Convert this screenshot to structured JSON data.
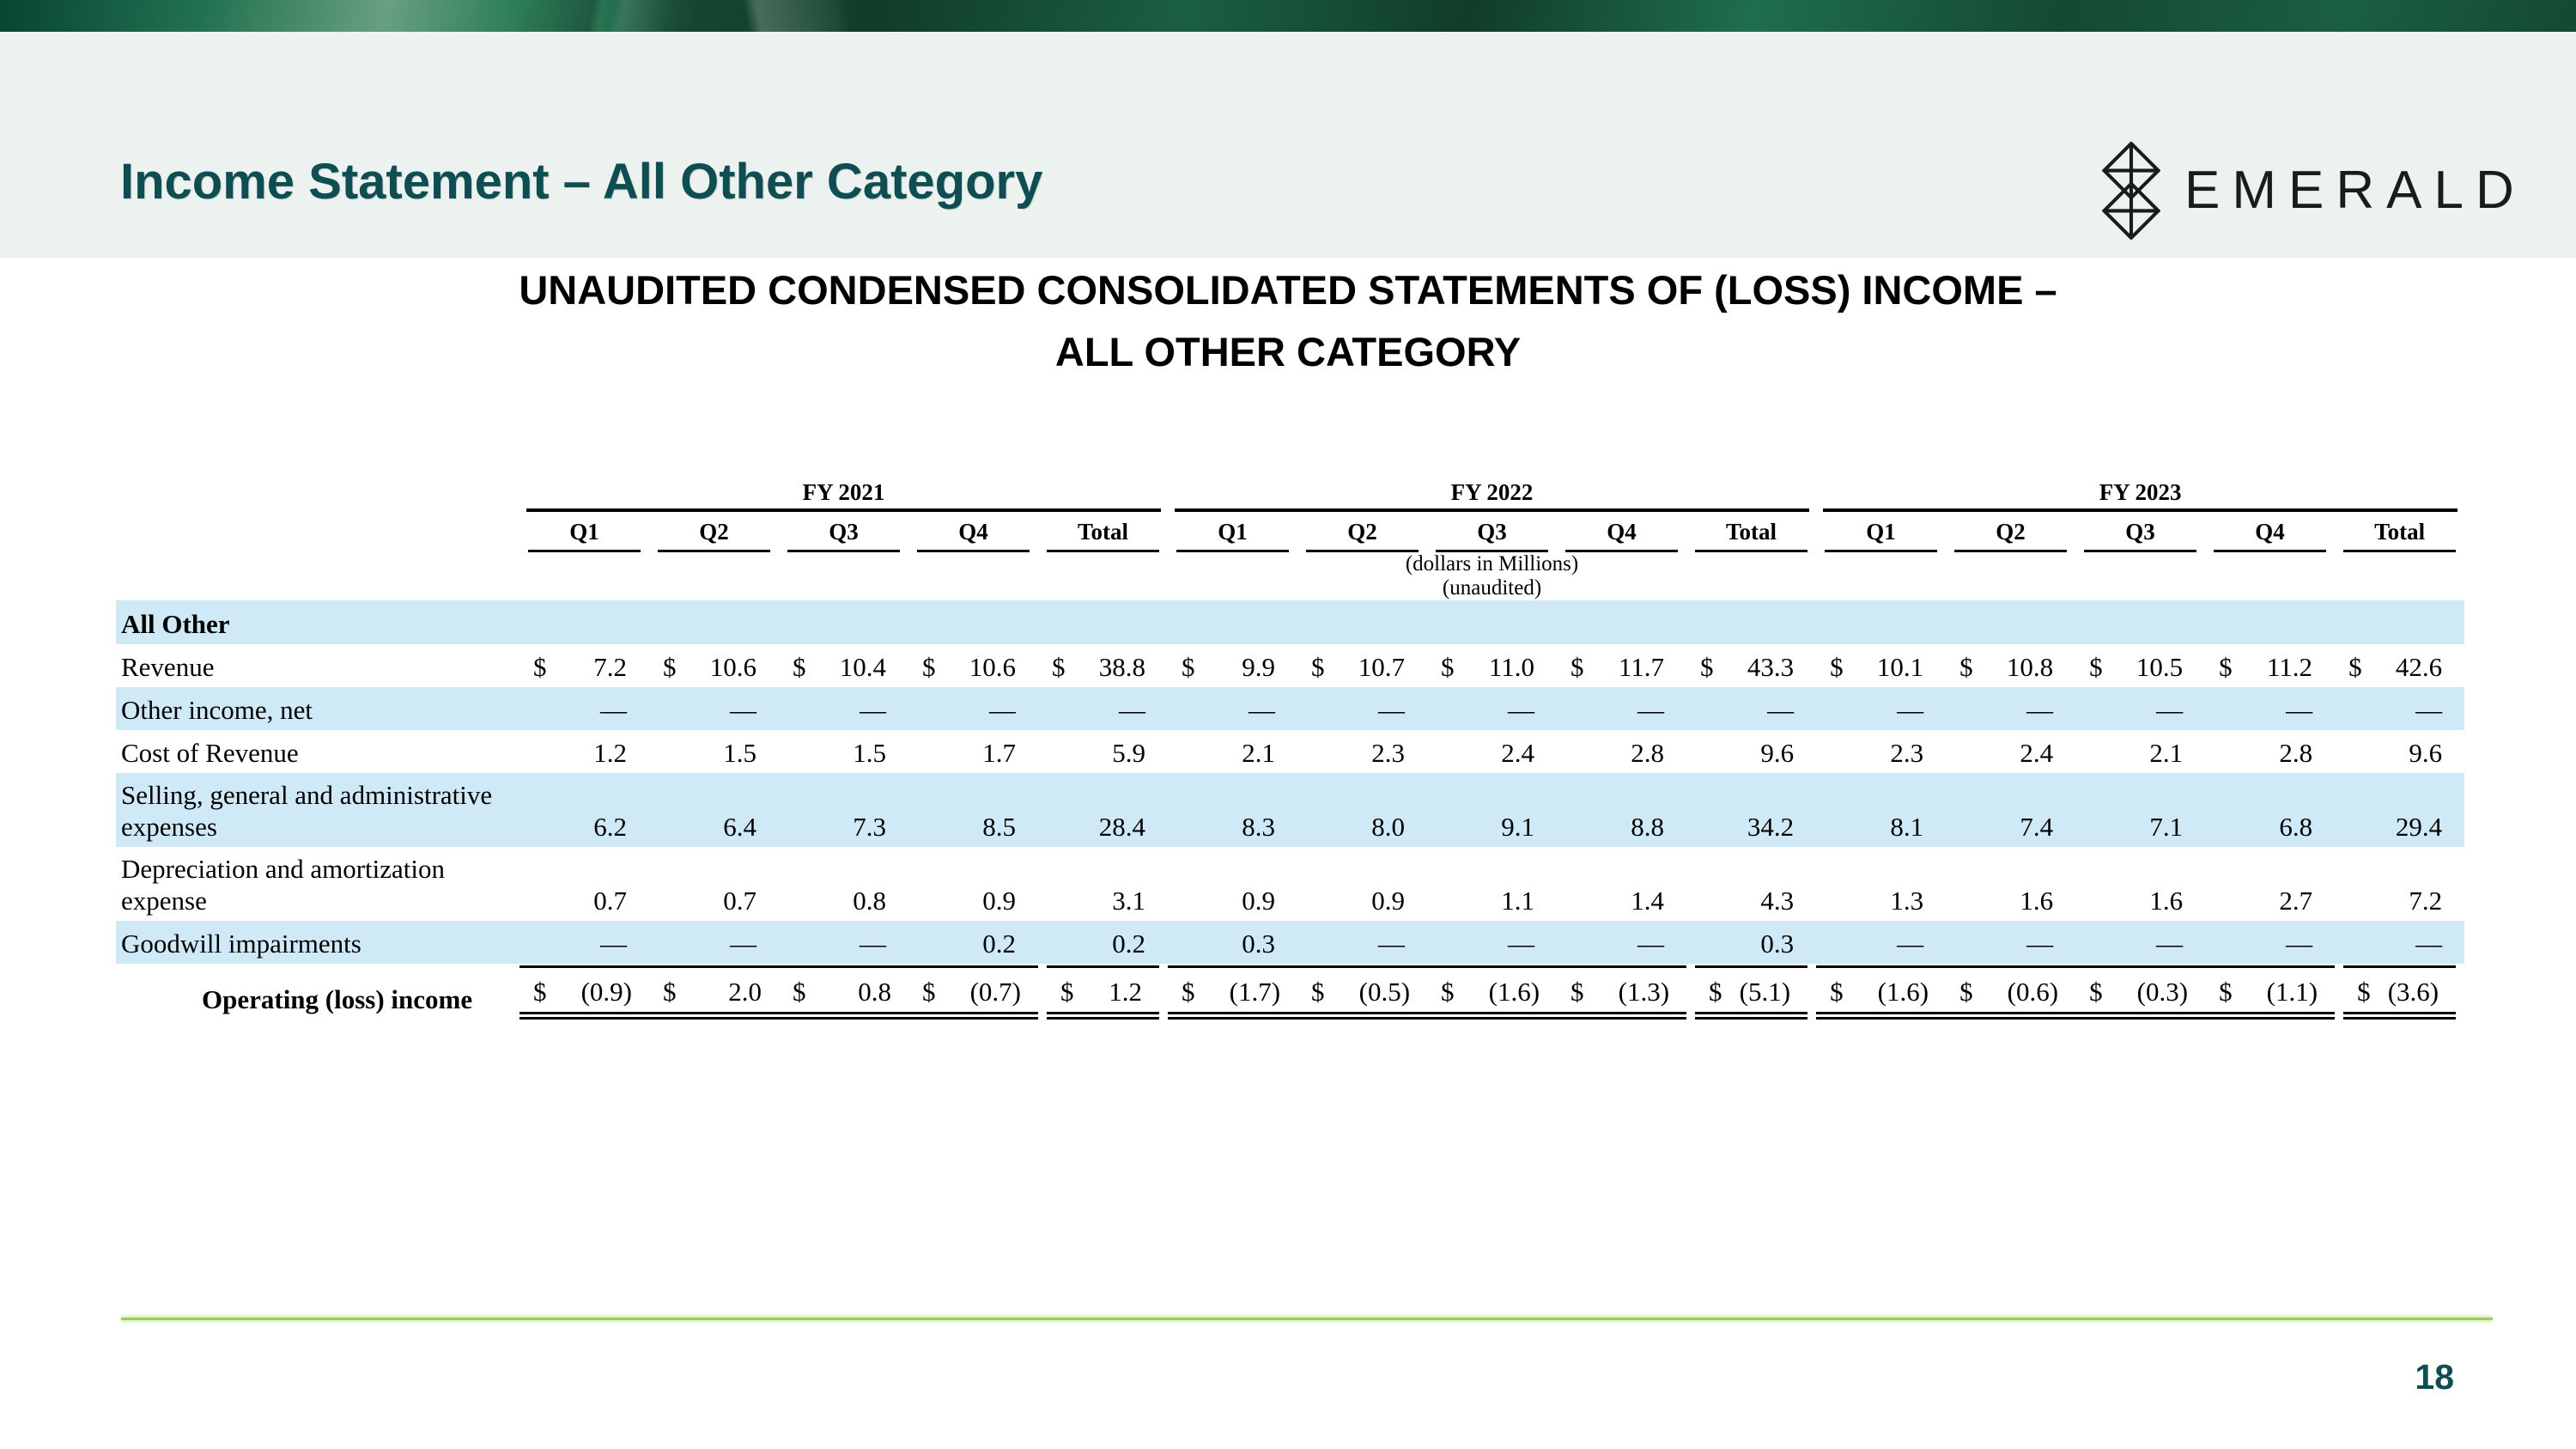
{
  "slide": {
    "title": "Income Statement – All Other Category",
    "page_number": "18"
  },
  "logo": {
    "text": "EMERALD",
    "icon": "emerald-diamond-icon"
  },
  "table_title": {
    "line1": "UNAUDITED CONDENSED CONSOLIDATED STATEMENTS OF (LOSS) INCOME –",
    "line2": "ALL OTHER CATEGORY"
  },
  "table": {
    "notes": [
      "(dollars in Millions)",
      "(unaudited)"
    ],
    "year_groups": [
      {
        "label": "FY 2021",
        "quarters": [
          "Q1",
          "Q2",
          "Q3",
          "Q4",
          "Total"
        ]
      },
      {
        "label": "FY 2022",
        "quarters": [
          "Q1",
          "Q2",
          "Q3",
          "Q4",
          "Total"
        ]
      },
      {
        "label": "FY 2023",
        "quarters": [
          "Q1",
          "Q2",
          "Q3",
          "Q4",
          "Total"
        ]
      }
    ],
    "section_label": "All Other",
    "rows": [
      {
        "label": "Revenue",
        "currency": true,
        "shade": false,
        "wrap": false,
        "total": false,
        "values": [
          "7.2",
          "10.6",
          "10.4",
          "10.6",
          "38.8",
          "9.9",
          "10.7",
          "11.0",
          "11.7",
          "43.3",
          "10.1",
          "10.8",
          "10.5",
          "11.2",
          "42.6"
        ]
      },
      {
        "label": "Other income, net",
        "currency": false,
        "shade": true,
        "wrap": false,
        "total": false,
        "values": [
          "—",
          "—",
          "—",
          "—",
          "—",
          "—",
          "—",
          "—",
          "—",
          "—",
          "—",
          "—",
          "—",
          "—",
          "—"
        ]
      },
      {
        "label": "Cost of Revenue",
        "currency": false,
        "shade": false,
        "wrap": false,
        "total": false,
        "values": [
          "1.2",
          "1.5",
          "1.5",
          "1.7",
          "5.9",
          "2.1",
          "2.3",
          "2.4",
          "2.8",
          "9.6",
          "2.3",
          "2.4",
          "2.1",
          "2.8",
          "9.6"
        ]
      },
      {
        "label": "Selling, general and administrative expenses",
        "currency": false,
        "shade": true,
        "wrap": true,
        "total": false,
        "values": [
          "6.2",
          "6.4",
          "7.3",
          "8.5",
          "28.4",
          "8.3",
          "8.0",
          "9.1",
          "8.8",
          "34.2",
          "8.1",
          "7.4",
          "7.1",
          "6.8",
          "29.4"
        ]
      },
      {
        "label": "Depreciation and amortization expense",
        "currency": false,
        "shade": false,
        "wrap": true,
        "total": false,
        "values": [
          "0.7",
          "0.7",
          "0.8",
          "0.9",
          "3.1",
          "0.9",
          "0.9",
          "1.1",
          "1.4",
          "4.3",
          "1.3",
          "1.6",
          "1.6",
          "2.7",
          "7.2"
        ]
      },
      {
        "label": "Goodwill impairments",
        "currency": false,
        "shade": true,
        "wrap": false,
        "total": false,
        "values": [
          "—",
          "—",
          "—",
          "0.2",
          "0.2",
          "0.3",
          "—",
          "—",
          "—",
          "0.3",
          "—",
          "—",
          "—",
          "—",
          "—"
        ]
      },
      {
        "label": "Operating (loss) income",
        "currency": true,
        "shade": false,
        "wrap": false,
        "total": true,
        "values": [
          "(0.9)",
          "2.0",
          "0.8",
          "(0.7)",
          "1.2",
          "(1.7)",
          "(0.5)",
          "(1.6)",
          "(1.3)",
          "(5.1)",
          "(1.6)",
          "(0.6)",
          "(0.3)",
          "(1.1)",
          "(3.6)"
        ]
      }
    ]
  },
  "colors": {
    "title_teal": "#0e4e53",
    "band_bg": "#ebf2f0",
    "row_blue": "#cfe9f7",
    "divider_green": "#9cce55",
    "banner_teal": "#0b5f46",
    "banner_bright": "#2f9e71",
    "banner_mint": "#90ddb3",
    "banner_bright2": "#3fae7d",
    "banner_dark": "#113c2a",
    "banner_dark2": "#154832",
    "banner_mid": "#1a5f43",
    "banner_mid2": "#1e6e4e"
  }
}
